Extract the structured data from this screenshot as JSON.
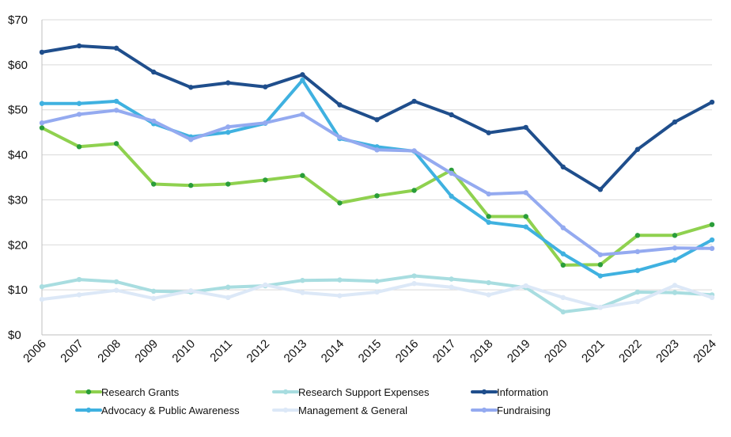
{
  "chart_data": {
    "type": "line",
    "title": "",
    "xlabel": "",
    "ylabel": "",
    "x": [
      "2006",
      "2007",
      "2008",
      "2009",
      "2010",
      "2011",
      "2012",
      "2013",
      "2014",
      "2015",
      "2016",
      "2017",
      "2018",
      "2019",
      "2020",
      "2021",
      "2022",
      "2023",
      "2024"
    ],
    "ylim": [
      0,
      70
    ],
    "yticks": [
      0,
      10,
      20,
      30,
      40,
      50,
      60,
      70
    ],
    "ytick_labels": [
      "$0",
      "$10",
      "$20",
      "$30",
      "$40",
      "$50",
      "$60",
      "$70"
    ],
    "grid": "horizontal",
    "legend_position": "bottom",
    "series": [
      {
        "name": "Research Grants",
        "color": "#8fd14f",
        "marker_color": "#2a9d3a",
        "values": [
          46.0,
          41.8,
          42.5,
          33.5,
          33.2,
          33.5,
          34.4,
          35.4,
          29.3,
          30.9,
          32.1,
          36.6,
          26.3,
          26.3,
          15.5,
          15.6,
          22.1,
          22.1,
          24.5
        ]
      },
      {
        "name": "Research Support Expenses",
        "color": "#a8dde0",
        "marker_color": "#a8dde0",
        "values": [
          10.7,
          12.3,
          11.8,
          9.7,
          9.5,
          10.6,
          10.9,
          12.1,
          12.2,
          11.9,
          13.1,
          12.4,
          11.6,
          10.5,
          5.1,
          6.1,
          9.5,
          9.4,
          8.9
        ]
      },
      {
        "name": "Information",
        "color": "#1f4e8c",
        "marker_color": "#1f4e8c",
        "values": [
          62.8,
          64.2,
          63.7,
          58.4,
          55.0,
          56.0,
          55.1,
          57.8,
          51.1,
          47.8,
          51.9,
          48.9,
          44.9,
          46.1,
          37.3,
          32.3,
          41.2,
          47.3,
          51.7
        ]
      },
      {
        "name": "Advocacy & Public Awareness",
        "color": "#3fb1e0",
        "marker_color": "#3fb1e0",
        "values": [
          51.4,
          51.4,
          51.9,
          46.9,
          44.0,
          45.0,
          47.0,
          56.6,
          43.6,
          41.8,
          40.8,
          30.8,
          25.0,
          24.0,
          18.0,
          13.1,
          14.3,
          16.6,
          21.1
        ]
      },
      {
        "name": "Management & General",
        "color": "#dce8f7",
        "marker_color": "#dce8f7",
        "values": [
          7.9,
          8.9,
          9.9,
          8.1,
          9.8,
          8.3,
          11.1,
          9.4,
          8.7,
          9.5,
          11.4,
          10.6,
          8.9,
          10.9,
          8.3,
          6.1,
          7.4,
          11.0,
          8.3
        ]
      },
      {
        "name": "Fundraising",
        "color": "#94aaf0",
        "marker_color": "#94aaf0",
        "values": [
          47.1,
          49.0,
          49.9,
          47.5,
          43.4,
          46.2,
          47.1,
          49.0,
          43.9,
          41.1,
          40.9,
          35.9,
          31.3,
          31.6,
          23.8,
          17.8,
          18.5,
          19.3,
          19.2
        ]
      }
    ]
  }
}
